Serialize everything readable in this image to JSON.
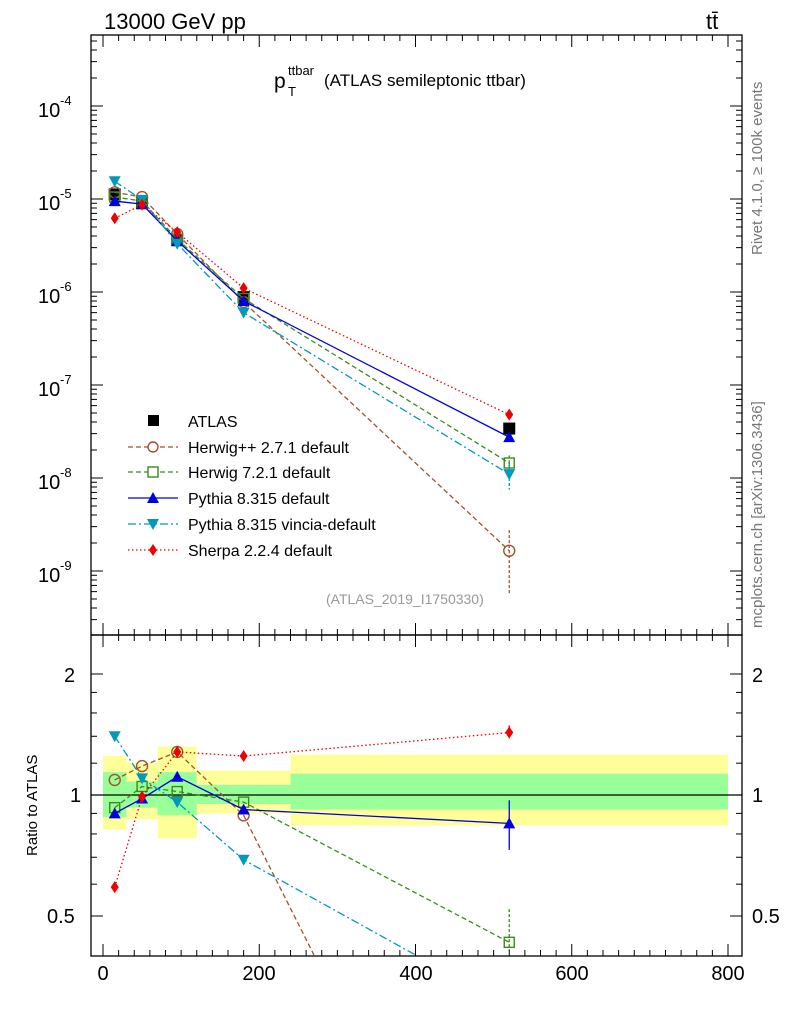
{
  "header": {
    "energy_label": "13000 GeV pp",
    "process_label": "tt̄",
    "rivet_label": "Rivet 4.1.0, ≥ 100k events",
    "mcplots_label": "mcplots.cern.ch [arXiv:1306.3436]"
  },
  "chart_data": [
    {
      "type": "line",
      "title_main": "p",
      "title_sup": "ttbar",
      "title_sub": "T",
      "title_rest": "(ATLAS semileptonic ttbar)",
      "analysis_label": "(ATLAS_2019_I1750330)",
      "yscale": "log",
      "xlim": [
        -20,
        800
      ],
      "ylim": [
        2.5e-10,
        0.0005
      ],
      "y_tick_labels": [
        {
          "base": "10",
          "exp": "-9",
          "value": 1e-09
        },
        {
          "base": "10",
          "exp": "-8",
          "value": 1e-08
        },
        {
          "base": "10",
          "exp": "-7",
          "value": 1e-07
        },
        {
          "base": "10",
          "exp": "-6",
          "value": 1e-06
        },
        {
          "base": "10",
          "exp": "-5",
          "value": 1e-05
        },
        {
          "base": "10",
          "exp": "-4",
          "value": 0.0001
        }
      ],
      "legend_position": "bottom-left",
      "series": [
        {
          "name": "ATLAS",
          "color": "#000000",
          "marker": "square-filled",
          "dash": "none",
          "x": [
            15,
            50,
            95,
            180,
            520
          ],
          "y": [
            1.12e-05,
            9e-06,
            3.6e-06,
            8.8e-07,
            3.4e-08
          ]
        },
        {
          "name": "Herwig++ 2.7.1 default",
          "color": "#a0522d",
          "marker": "circle-open",
          "dash": "dashed",
          "x": [
            15,
            50,
            95,
            180,
            520
          ],
          "y": [
            1.18e-05,
            1.05e-05,
            4.2e-06,
            7.8e-07,
            1.65e-09
          ],
          "yerr": [
            [
              15,
              2e-07
            ],
            [
              520,
              1.1e-09
            ]
          ]
        },
        {
          "name": "Herwig 7.2.1 default",
          "color": "#3a8c1a",
          "marker": "square-open",
          "dash": "dashed",
          "x": [
            15,
            50,
            95,
            180,
            520
          ],
          "y": [
            1.05e-05,
            9.5e-06,
            3.7e-06,
            8.5e-07,
            1.45e-08
          ],
          "yerr": [
            [
              520,
              3e-09
            ]
          ]
        },
        {
          "name": "Pythia 8.315 default",
          "color": "#0000dd",
          "marker": "triangle-up-filled",
          "dash": "solid",
          "x": [
            15,
            50,
            95,
            180,
            520
          ],
          "y": [
            9.5e-06,
            8.8e-06,
            3.55e-06,
            8e-07,
            2.75e-08
          ]
        },
        {
          "name": "Pythia 8.315 vincia-default",
          "color": "#0099bb",
          "marker": "triangle-down-filled",
          "dash": "dashdot",
          "x": [
            15,
            50,
            95,
            180,
            520
          ],
          "y": [
            1.55e-05,
            9.8e-06,
            3.3e-06,
            6e-07,
            1.1e-08
          ],
          "yerr": [
            [
              520,
              3.5e-09
            ]
          ]
        },
        {
          "name": "Sherpa 2.2.4 default",
          "color": "#ee0000",
          "marker": "diamond-filled",
          "dash": "dotted",
          "x": [
            15,
            50,
            95,
            180,
            520
          ],
          "y": [
            6.2e-06,
            8.7e-06,
            4.4e-06,
            1.1e-06,
            4.8e-08
          ]
        }
      ]
    },
    {
      "type": "line",
      "ylabel": "Ratio to ATLAS",
      "xlabel_ticks": [
        "0",
        "200",
        "400",
        "600",
        "800"
      ],
      "x_ticks": [
        0,
        200,
        400,
        600,
        800
      ],
      "xlim": [
        -20,
        800
      ],
      "ylim": [
        0.4,
        2.4
      ],
      "yscale": "log",
      "y_ticks": [
        0.5,
        1,
        2
      ],
      "y_tick_labels": [
        "0.5",
        "1",
        "2"
      ],
      "reference_line": 1.0,
      "bands": [
        {
          "x0": 0,
          "x1": 30,
          "yellow": [
            0.82,
            1.25
          ],
          "green": [
            0.88,
            1.14
          ]
        },
        {
          "x0": 30,
          "x1": 70,
          "yellow": [
            0.87,
            1.2
          ],
          "green": [
            0.93,
            1.08
          ]
        },
        {
          "x0": 70,
          "x1": 120,
          "yellow": [
            0.78,
            1.32
          ],
          "green": [
            0.89,
            1.14
          ]
        },
        {
          "x0": 120,
          "x1": 240,
          "yellow": [
            0.9,
            1.15
          ],
          "green": [
            0.95,
            1.06
          ]
        },
        {
          "x0": 240,
          "x1": 800,
          "yellow": [
            0.84,
            1.26
          ],
          "green": [
            0.92,
            1.13
          ]
        }
      ],
      "series": [
        {
          "name": "Herwig++ 2.7.1 default",
          "color": "#a0522d",
          "dash": "dashed",
          "x": [
            15,
            50,
            95,
            180,
            270
          ],
          "y": [
            1.09,
            1.18,
            1.28,
            0.89,
            0.4
          ]
        },
        {
          "name": "Herwig 7.2.1 default",
          "color": "#3a8c1a",
          "dash": "dashed",
          "x": [
            15,
            50,
            95,
            180,
            520
          ],
          "y": [
            0.93,
            1.05,
            1.02,
            0.96,
            0.43
          ],
          "yerr": [
            [
              520,
              0.09
            ]
          ]
        },
        {
          "name": "Pythia 8.315 default",
          "color": "#0000dd",
          "dash": "solid",
          "x": [
            15,
            50,
            95,
            180,
            520
          ],
          "y": [
            0.9,
            0.98,
            1.11,
            0.92,
            0.85
          ],
          "yerr": [
            [
              520,
              0.12
            ]
          ]
        },
        {
          "name": "Pythia 8.315 vincia-default",
          "color": "#0099bb",
          "dash": "dashdot",
          "x": [
            15,
            50,
            95,
            180,
            400
          ],
          "y": [
            1.4,
            1.1,
            0.96,
            0.69,
            0.4
          ]
        },
        {
          "name": "Sherpa 2.2.4 default",
          "color": "#ee0000",
          "dash": "dotted",
          "x": [
            15,
            50,
            95,
            180,
            520
          ],
          "y": [
            0.59,
            0.99,
            1.28,
            1.25,
            1.43
          ],
          "yerr": [
            [
              520,
              0.06
            ]
          ]
        }
      ]
    }
  ]
}
